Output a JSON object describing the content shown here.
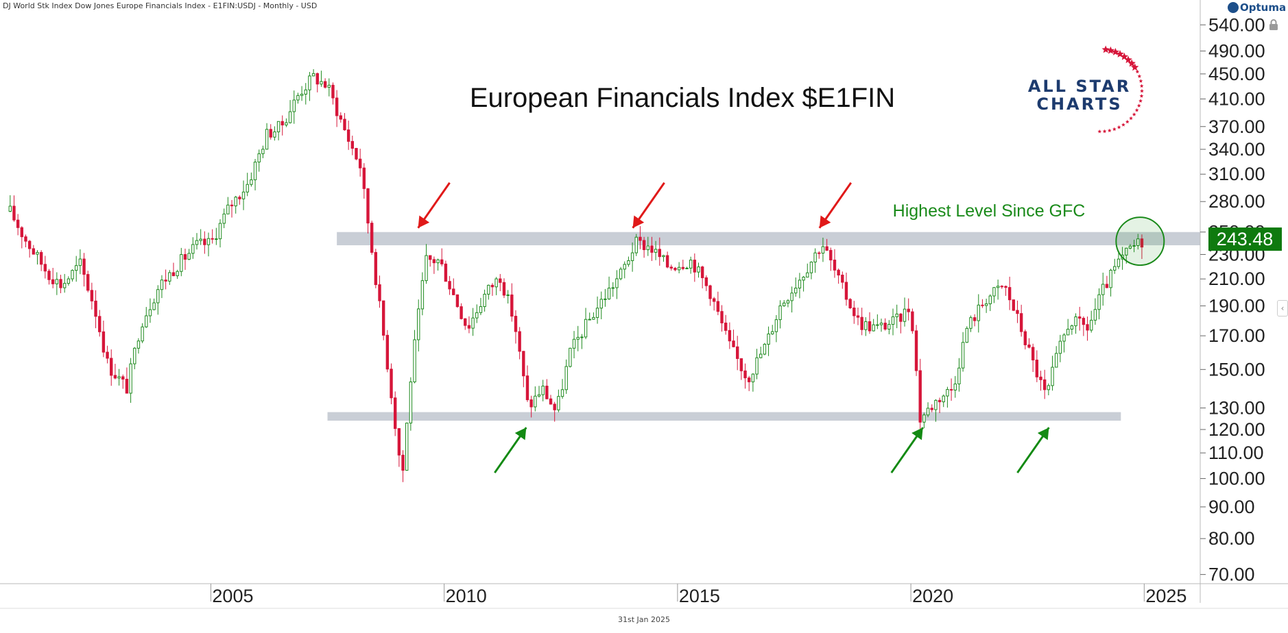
{
  "header": {
    "instrument_label": "DJ World Stk Index Dow Jones Europe Financials Index  - E1FIN:USDJ - Monthly - USD"
  },
  "brand": {
    "name": "Optuma"
  },
  "footer": {
    "date": "31st Jan 2025"
  },
  "logo": {
    "line1": "ALL STAR",
    "line2": "CHARTS"
  },
  "colors": {
    "up": "#1e8a1e",
    "down": "#d6163a",
    "band": "#c3c9d2",
    "price_badge": "#0f7a0f",
    "arrow_resistance": "#e01919",
    "arrow_support": "#138a13",
    "annotation": "#1a8a1a"
  },
  "icons": [
    "lock-icon",
    "collapse-icon",
    "arrow-icon",
    "circle-highlight"
  ],
  "chart_data": {
    "type": "candlestick",
    "frequency": "Monthly",
    "currency": "USD",
    "title": "European Financials Index $E1FIN",
    "scale": "log",
    "y_ticks": [
      540,
      490,
      450,
      410,
      370,
      340,
      310,
      280,
      250,
      230,
      210,
      190,
      170,
      150,
      130,
      120,
      110,
      100,
      90,
      80,
      70
    ],
    "y_tick_labels": [
      "540.00",
      "490.00",
      "450.00",
      "410.00",
      "370.00",
      "340.00",
      "310.00",
      "280.00",
      "250.00",
      "230.00",
      "210.00",
      "190.00",
      "170.00",
      "150.00",
      "130.00",
      "120.00",
      "110.00",
      "100.00",
      "90.00",
      "80.00",
      "70.00"
    ],
    "x_ticks": [
      "2005",
      "2010",
      "2015",
      "2020",
      "2025"
    ],
    "x_range": [
      2000.6,
      2026.2
    ],
    "last_price": 243.48,
    "last_price_label": "243.48",
    "series": [
      {
        "x": 2000.7,
        "y": 270
      },
      {
        "x": 2001.0,
        "y": 245
      },
      {
        "x": 2001.5,
        "y": 215
      },
      {
        "x": 2001.8,
        "y": 205
      },
      {
        "x": 2002.2,
        "y": 222
      },
      {
        "x": 2002.5,
        "y": 190
      },
      {
        "x": 2002.8,
        "y": 152
      },
      {
        "x": 2003.2,
        "y": 140
      },
      {
        "x": 2003.5,
        "y": 178
      },
      {
        "x": 2003.9,
        "y": 205
      },
      {
        "x": 2004.3,
        "y": 222
      },
      {
        "x": 2004.7,
        "y": 238
      },
      {
        "x": 2005.0,
        "y": 240
      },
      {
        "x": 2005.4,
        "y": 275
      },
      {
        "x": 2005.8,
        "y": 300
      },
      {
        "x": 2006.2,
        "y": 360
      },
      {
        "x": 2006.5,
        "y": 370
      },
      {
        "x": 2006.9,
        "y": 420
      },
      {
        "x": 2007.2,
        "y": 445
      },
      {
        "x": 2007.5,
        "y": 430
      },
      {
        "x": 2007.9,
        "y": 360
      },
      {
        "x": 2008.2,
        "y": 320
      },
      {
        "x": 2008.5,
        "y": 220
      },
      {
        "x": 2008.8,
        "y": 150
      },
      {
        "x": 2009.1,
        "y": 100
      },
      {
        "x": 2009.3,
        "y": 150
      },
      {
        "x": 2009.6,
        "y": 225
      },
      {
        "x": 2009.9,
        "y": 225
      },
      {
        "x": 2010.3,
        "y": 190
      },
      {
        "x": 2010.5,
        "y": 175
      },
      {
        "x": 2010.9,
        "y": 200
      },
      {
        "x": 2011.2,
        "y": 212
      },
      {
        "x": 2011.5,
        "y": 180
      },
      {
        "x": 2011.8,
        "y": 130
      },
      {
        "x": 2012.1,
        "y": 140
      },
      {
        "x": 2012.4,
        "y": 128
      },
      {
        "x": 2012.7,
        "y": 160
      },
      {
        "x": 2013.0,
        "y": 175
      },
      {
        "x": 2013.4,
        "y": 195
      },
      {
        "x": 2013.8,
        "y": 215
      },
      {
        "x": 2014.1,
        "y": 240
      },
      {
        "x": 2014.4,
        "y": 237
      },
      {
        "x": 2014.8,
        "y": 220
      },
      {
        "x": 2015.3,
        "y": 225
      },
      {
        "x": 2015.7,
        "y": 200
      },
      {
        "x": 2016.1,
        "y": 165
      },
      {
        "x": 2016.5,
        "y": 145
      },
      {
        "x": 2016.9,
        "y": 165
      },
      {
        "x": 2017.2,
        "y": 190
      },
      {
        "x": 2017.7,
        "y": 215
      },
      {
        "x": 2018.1,
        "y": 240
      },
      {
        "x": 2018.5,
        "y": 205
      },
      {
        "x": 2018.9,
        "y": 178
      },
      {
        "x": 2019.3,
        "y": 175
      },
      {
        "x": 2019.7,
        "y": 180
      },
      {
        "x": 2020.0,
        "y": 190
      },
      {
        "x": 2020.2,
        "y": 125
      },
      {
        "x": 2020.6,
        "y": 135
      },
      {
        "x": 2020.9,
        "y": 140
      },
      {
        "x": 2021.2,
        "y": 175
      },
      {
        "x": 2021.6,
        "y": 195
      },
      {
        "x": 2022.0,
        "y": 205
      },
      {
        "x": 2022.3,
        "y": 180
      },
      {
        "x": 2022.6,
        "y": 155
      },
      {
        "x": 2022.9,
        "y": 135
      },
      {
        "x": 2023.1,
        "y": 155
      },
      {
        "x": 2023.4,
        "y": 180
      },
      {
        "x": 2023.8,
        "y": 175
      },
      {
        "x": 2024.1,
        "y": 200
      },
      {
        "x": 2024.4,
        "y": 220
      },
      {
        "x": 2024.7,
        "y": 235
      },
      {
        "x": 2025.0,
        "y": 243.48
      }
    ],
    "resistance_band": {
      "low": 238,
      "high": 250,
      "x_from": 2007.7,
      "x_to": 2026.2
    },
    "support_band": {
      "low": 124,
      "high": 128,
      "x_from": 2007.5,
      "x_to": 2024.5
    },
    "resistance_touches": [
      2009.5,
      2014.1,
      2018.1
    ],
    "support_touches": [
      2011.7,
      2020.2,
      2022.9
    ],
    "annotations": [
      {
        "text": "Highest Level Since GFC",
        "x": 2024.9,
        "y": 285
      }
    ]
  }
}
